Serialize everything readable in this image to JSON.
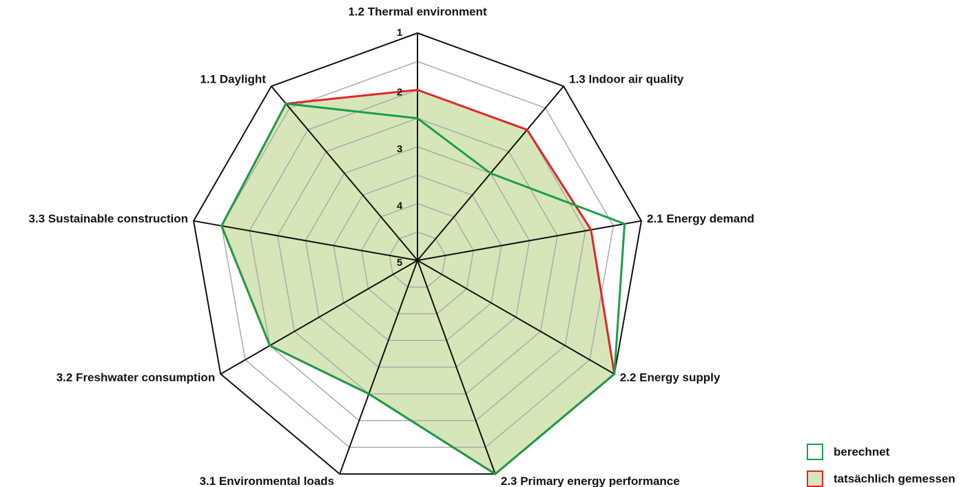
{
  "chart_data": {
    "type": "radar",
    "categories": [
      "1.2 Thermal environment",
      "1.3 Indoor air quality",
      "2.1 Energy demand",
      "2.2 Energy supply",
      "2.3 Primary energy performance",
      "3.1 Environmental loads",
      "3.2 Freshwater consumption",
      "3.3 Sustainable construction",
      "1.1 Daylight"
    ],
    "rlim": [
      5,
      1
    ],
    "rticks": [
      1,
      2,
      3,
      4,
      5
    ],
    "minor_rticks": [
      1.5,
      2.5,
      3.5,
      4.5
    ],
    "series": [
      {
        "name": "berechnet",
        "color": "#1a9e4a",
        "values": [
          2.5,
          3,
          1.3,
          1,
          1,
          2.5,
          2,
          1.5,
          1.4
        ]
      },
      {
        "name": "tatsächlich gemessen",
        "color": "#e0262b",
        "fill": "#d7e6b8",
        "values": [
          2,
          2,
          1.9,
          1,
          1,
          2.5,
          2,
          1.5,
          1.4
        ]
      }
    ],
    "legend": "lower right"
  }
}
